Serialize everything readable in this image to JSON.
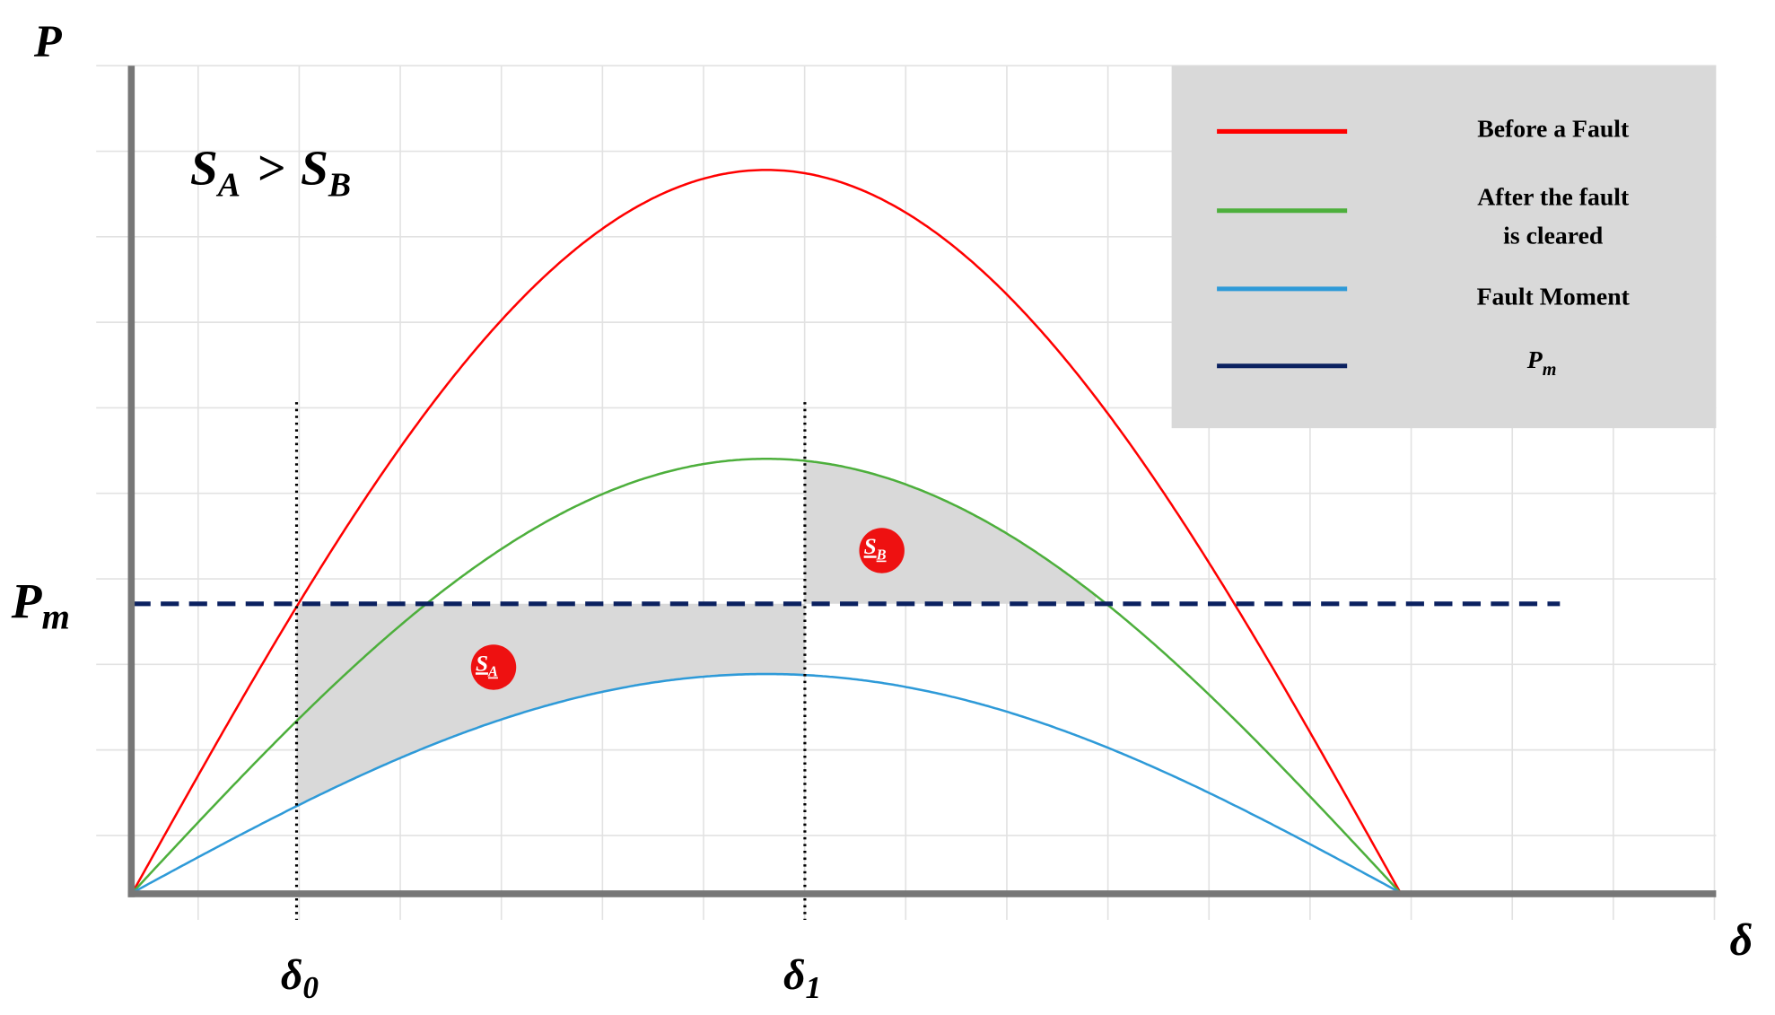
{
  "axes": {
    "y_label": "P",
    "x_label": "δ",
    "pm_label": {
      "symbol": "P",
      "subscript": "m"
    },
    "delta0": {
      "symbol": "δ",
      "subscript": "0"
    },
    "delta1": {
      "symbol": "δ",
      "subscript": "1"
    }
  },
  "condition": {
    "left": "S",
    "left_sub": "A",
    "op": ">",
    "right": "S",
    "right_sub": "B"
  },
  "legend": {
    "before": "Before a Fault",
    "after_line1": "After the fault",
    "after_line2": "is cleared",
    "fault": "Fault Moment",
    "pm": {
      "symbol": "P",
      "subscript": "m"
    }
  },
  "regions": {
    "a": {
      "symbol": "S",
      "subscript": "A"
    },
    "b": {
      "symbol": "S",
      "subscript": "B"
    }
  }
}
